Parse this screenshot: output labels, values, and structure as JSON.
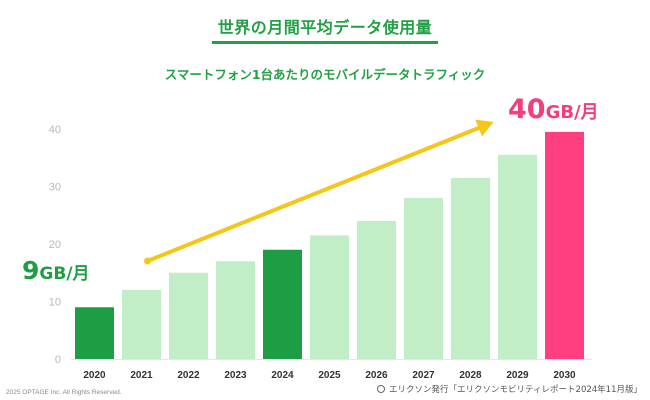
{
  "header": {
    "title": "世界の月間平均データ使用量",
    "subtitle": "スマートフォン1台あたりのモバイルデータトラフィック"
  },
  "callouts": {
    "start": {
      "number": "9",
      "unit": "GB/月"
    },
    "end": {
      "number": "40",
      "unit": "GB/月"
    }
  },
  "footer": {
    "copyright": "2025 OPTAGE Inc. All Rights Reserved.",
    "source": "エリクソン発行「エリクソンモビリティレポート2024年11月版」"
  },
  "colors": {
    "highlight_green": "#1e9e44",
    "light_green": "#c2eec7",
    "pink": "#ff3f80",
    "arrow": "#f5c518",
    "axis_text": "#b8b8b8"
  },
  "chart_data": {
    "type": "bar",
    "categories": [
      "2020",
      "2021",
      "2022",
      "2023",
      "2024",
      "2025",
      "2026",
      "2027",
      "2028",
      "2029",
      "2030"
    ],
    "values": [
      9,
      12,
      15,
      17,
      19,
      21.5,
      24,
      28,
      31.5,
      35.5,
      39.5
    ],
    "bar_styles": [
      "highlight",
      "light",
      "light",
      "light",
      "highlight",
      "light",
      "light",
      "light",
      "light",
      "light",
      "pink"
    ],
    "yticks": [
      0,
      10,
      20,
      30,
      40
    ],
    "ylim": [
      0,
      40
    ],
    "grid": false,
    "legend": "none",
    "arrow_from": "2021",
    "arrow_to": "2029"
  }
}
